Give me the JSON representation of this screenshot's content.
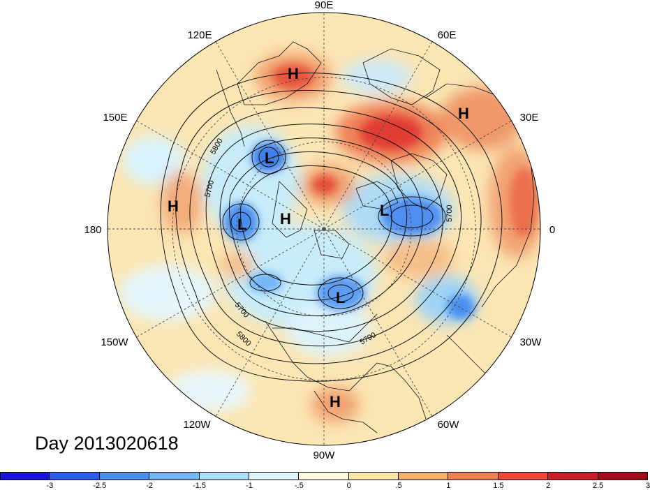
{
  "title": "Day 2013020618",
  "longitude_labels": {
    "lon_90e": "90E",
    "lon_60e": "60E",
    "lon_30e": "30E",
    "lon_0": "0",
    "lon_30w": "30W",
    "lon_60w": "60W",
    "lon_90w": "90W",
    "lon_120w": "120W",
    "lon_150w": "150W",
    "lon_180": "180",
    "lon_150e": "150E",
    "lon_120e": "120E"
  },
  "contour_labels": [
    "5800",
    "5700",
    "5700",
    "5700",
    "5800",
    "5700"
  ],
  "pressure_centers": [
    {
      "type": "H",
      "label": "H"
    },
    {
      "type": "H",
      "label": "H"
    },
    {
      "type": "H",
      "label": "H"
    },
    {
      "type": "H",
      "label": "H"
    },
    {
      "type": "H",
      "label": "H"
    },
    {
      "type": "L",
      "label": "L"
    },
    {
      "type": "L",
      "label": "L"
    },
    {
      "type": "L",
      "label": "L"
    },
    {
      "type": "L",
      "label": "L"
    }
  ],
  "colorbar": {
    "colors": [
      "#1a14d9",
      "#2a5fe6",
      "#4a8ff0",
      "#72b6f6",
      "#a6e0fb",
      "#dcf6fe",
      "#fffadc",
      "#fbe6a6",
      "#f6b06e",
      "#f08050",
      "#e84a3a",
      "#c81e28",
      "#a00e1a"
    ],
    "ticks": [
      "-3",
      "-2.5",
      "-2",
      "-1.5",
      "-1",
      "-.5",
      "0",
      ".5",
      "1",
      "1.5",
      "2",
      "2.5",
      "3"
    ]
  }
}
